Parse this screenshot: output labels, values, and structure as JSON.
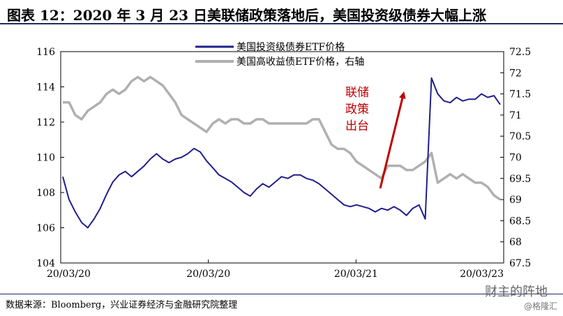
{
  "title": "图表 12：2020 年 3 月 23 日美联储政策落地后，美国投资级债券大幅上涨",
  "source": "数据来源：Bloomberg，兴业证券经济与金融研究院整理",
  "watermark": "财主的阵地",
  "watermark2": "@格隆汇",
  "colors": {
    "ig_series": "#1f1f8a",
    "hy_series": "#b0b0b0",
    "annotation": "#c00000",
    "rule": "#1f2a6b"
  },
  "chart_data": {
    "type": "line",
    "title": "",
    "xlabel": "",
    "ylabel": "",
    "x_tick_labels": [
      "20/03/20",
      "20/03/20",
      "20/03/21",
      "20/03/23"
    ],
    "ylim_left": [
      104,
      116
    ],
    "yticks_left": [
      "104",
      "106",
      "108",
      "110",
      "112",
      "114",
      "116"
    ],
    "ylim_right": [
      67.5,
      72.5
    ],
    "yticks_right": [
      "67.5",
      "68",
      "68.5",
      "69",
      "69.5",
      "70",
      "70.5",
      "71",
      "71.5",
      "72",
      "72.5"
    ],
    "grid": false,
    "legend_position": "top-center",
    "series": [
      {
        "name": "美国投资级债券ETF价格",
        "axis": "left",
        "color": "#1f1f8a",
        "values": [
          108.9,
          107.6,
          106.9,
          106.3,
          106.0,
          106.5,
          107.1,
          107.9,
          108.6,
          109.0,
          109.2,
          108.9,
          109.2,
          109.5,
          109.9,
          110.2,
          109.9,
          109.7,
          109.9,
          110.0,
          110.2,
          110.5,
          110.3,
          109.8,
          109.4,
          109.0,
          108.8,
          108.6,
          108.3,
          108.0,
          107.8,
          108.2,
          108.5,
          108.3,
          108.6,
          108.9,
          108.8,
          109.0,
          109.0,
          108.8,
          108.7,
          108.5,
          108.2,
          107.9,
          107.6,
          107.3,
          107.2,
          107.3,
          107.2,
          107.1,
          106.9,
          107.1,
          107.0,
          107.2,
          107.0,
          106.7,
          107.1,
          107.3,
          106.5,
          114.5,
          113.6,
          113.2,
          113.1,
          113.4,
          113.2,
          113.3,
          113.3,
          113.6,
          113.4,
          113.5,
          113.0
        ]
      },
      {
        "name": "美国高收益债ETF价格，右轴",
        "axis": "right",
        "color": "#b0b0b0",
        "values": [
          71.3,
          71.3,
          71.0,
          70.9,
          71.1,
          71.2,
          71.3,
          71.5,
          71.6,
          71.5,
          71.6,
          71.8,
          71.9,
          71.8,
          71.9,
          71.8,
          71.7,
          71.5,
          71.3,
          71.0,
          70.9,
          70.8,
          70.7,
          70.6,
          70.8,
          70.9,
          70.8,
          70.9,
          70.9,
          70.8,
          70.8,
          70.9,
          70.9,
          70.8,
          70.8,
          70.8,
          70.8,
          70.8,
          70.8,
          70.8,
          70.9,
          70.9,
          70.6,
          70.3,
          70.2,
          70.2,
          70.1,
          69.9,
          69.8,
          69.7,
          69.6,
          69.5,
          69.8,
          69.8,
          69.8,
          69.7,
          69.7,
          69.8,
          69.9,
          70.1,
          69.4,
          69.5,
          69.6,
          69.5,
          69.6,
          69.5,
          69.4,
          69.4,
          69.3,
          69.1,
          69.0
        ]
      }
    ],
    "annotation": {
      "text": "联储\n政策\n出台"
    }
  }
}
